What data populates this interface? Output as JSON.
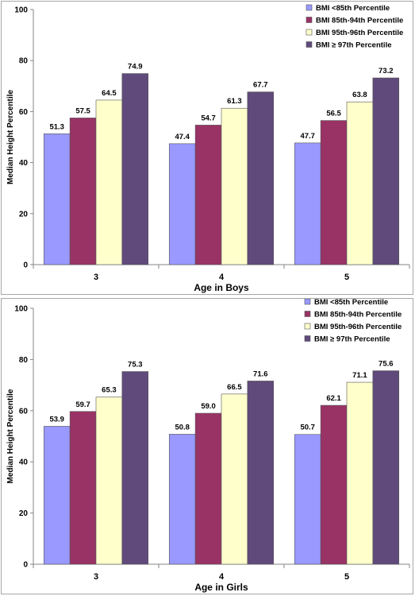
{
  "chart_data": [
    {
      "type": "bar",
      "categories": [
        "3",
        "4",
        "5"
      ],
      "series": [
        {
          "name": "BMI <85th Percentile",
          "values": [
            51.3,
            47.4,
            47.7
          ],
          "color": "#9999ff"
        },
        {
          "name": "BMI 85th-94th Percentile",
          "values": [
            57.5,
            54.7,
            56.5
          ],
          "color": "#993366"
        },
        {
          "name": "BMI 95th-96th Percentile",
          "values": [
            64.5,
            61.3,
            63.8
          ],
          "color": "#ffffcc"
        },
        {
          "name": "BMI ≥ 97th Percentile",
          "values": [
            74.9,
            67.7,
            73.2
          ],
          "color": "#604a7b"
        }
      ],
      "data_labels": [
        [
          "51.3",
          "47.4",
          "47.7"
        ],
        [
          "57.5",
          "54.7",
          "56.5"
        ],
        [
          "64.5",
          "61.3",
          "63.8"
        ],
        [
          "74.9",
          "67.7",
          "73.2"
        ]
      ],
      "xlabel": "Age in Boys",
      "ylabel": "Median Height Percentile",
      "ylim": [
        0,
        100
      ],
      "yticks": [
        "0",
        "20",
        "40",
        "60",
        "80",
        "100"
      ],
      "grid": false,
      "legend_position": "top-right"
    },
    {
      "type": "bar",
      "categories": [
        "3",
        "4",
        "5"
      ],
      "series": [
        {
          "name": "BMI <85th Percentile",
          "values": [
            53.9,
            50.8,
            50.7
          ],
          "color": "#9999ff"
        },
        {
          "name": "BMI 85th-94th Percentile",
          "values": [
            59.7,
            59.0,
            62.1
          ],
          "color": "#993366"
        },
        {
          "name": "BMI 95th-96th Percentile",
          "values": [
            65.3,
            66.5,
            71.1
          ],
          "color": "#ffffcc"
        },
        {
          "name": "BMI ≥ 97th Percentile",
          "values": [
            75.3,
            71.6,
            75.6
          ],
          "color": "#604a7b"
        }
      ],
      "data_labels": [
        [
          "53.9",
          "50.8",
          "50.7"
        ],
        [
          "59.7",
          "59.0",
          "62.1"
        ],
        [
          "65.3",
          "66.5",
          "71.1"
        ],
        [
          "75.3",
          "71.6",
          "75.6"
        ]
      ],
      "xlabel": "Age in Girls",
      "ylabel": "Median Height Percentile",
      "ylim": [
        0,
        100
      ],
      "yticks": [
        "0",
        "20",
        "40",
        "60",
        "80",
        "100"
      ],
      "grid": false,
      "legend_position": "top-right"
    }
  ]
}
